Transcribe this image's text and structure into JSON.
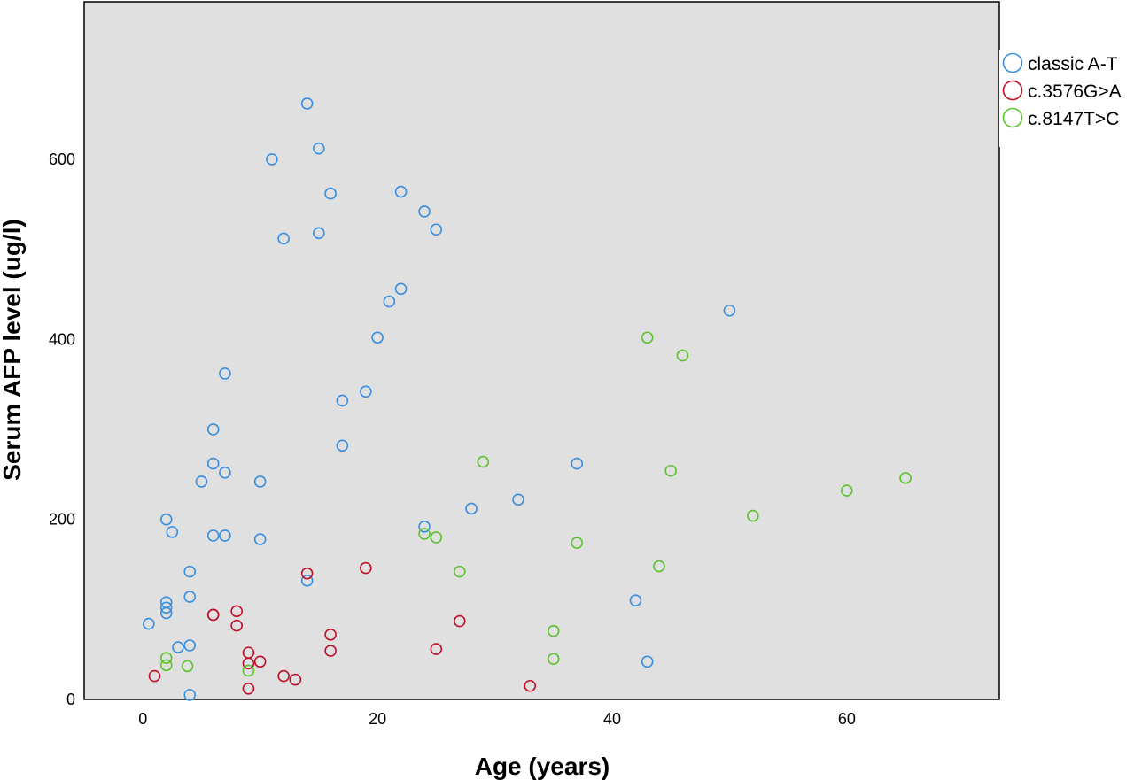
{
  "chart_data": {
    "type": "scatter",
    "title": "",
    "xlabel": "Age (years)",
    "ylabel": "Serum AFP level (ug/l)",
    "xlim": [
      -5,
      73
    ],
    "ylim": [
      0,
      775
    ],
    "x_ticks": [
      0,
      20,
      40,
      60
    ],
    "y_ticks": [
      0,
      200,
      400,
      600
    ],
    "grid": false,
    "plot_background": "#e0e0e0",
    "legend_position": "right-top",
    "series": [
      {
        "name": "classic A-T",
        "color": "#3a8ee0",
        "marker": "open-circle",
        "points": [
          [
            0.5,
            84
          ],
          [
            2,
            108
          ],
          [
            2,
            102
          ],
          [
            2,
            96
          ],
          [
            2,
            200
          ],
          [
            2.5,
            186
          ],
          [
            3,
            58
          ],
          [
            4,
            60
          ],
          [
            4,
            114
          ],
          [
            4,
            142
          ],
          [
            4,
            5
          ],
          [
            5,
            242
          ],
          [
            6,
            300
          ],
          [
            6,
            262
          ],
          [
            6,
            182
          ],
          [
            7,
            362
          ],
          [
            7,
            252
          ],
          [
            7,
            182
          ],
          [
            10,
            242
          ],
          [
            10,
            178
          ],
          [
            11,
            600
          ],
          [
            12,
            512
          ],
          [
            14,
            662
          ],
          [
            14,
            132
          ],
          [
            15,
            612
          ],
          [
            15,
            518
          ],
          [
            16,
            562
          ],
          [
            17,
            332
          ],
          [
            17,
            282
          ],
          [
            19,
            342
          ],
          [
            20,
            402
          ],
          [
            21,
            442
          ],
          [
            22,
            564
          ],
          [
            22,
            456
          ],
          [
            24,
            542
          ],
          [
            24,
            192
          ],
          [
            25,
            522
          ],
          [
            28,
            212
          ],
          [
            32,
            222
          ],
          [
            37,
            262
          ],
          [
            42,
            110
          ],
          [
            43,
            42
          ],
          [
            50,
            432
          ]
        ]
      },
      {
        "name": "c.3576G>A",
        "color": "#c0102a",
        "marker": "open-circle",
        "points": [
          [
            1,
            26
          ],
          [
            6,
            94
          ],
          [
            6,
            94
          ],
          [
            8,
            98
          ],
          [
            8,
            82
          ],
          [
            9,
            52
          ],
          [
            9,
            40
          ],
          [
            9,
            12
          ],
          [
            10,
            42
          ],
          [
            12,
            26
          ],
          [
            13,
            22
          ],
          [
            14,
            140
          ],
          [
            16,
            72
          ],
          [
            16,
            54
          ],
          [
            19,
            146
          ],
          [
            25,
            56
          ],
          [
            27,
            87
          ],
          [
            33,
            15
          ]
        ]
      },
      {
        "name": "c.8147T>C",
        "color": "#5ec22e",
        "marker": "open-circle",
        "points": [
          [
            2,
            46
          ],
          [
            2,
            38
          ],
          [
            3.8,
            37
          ],
          [
            9,
            32
          ],
          [
            24,
            184
          ],
          [
            25,
            180
          ],
          [
            27,
            142
          ],
          [
            29,
            264
          ],
          [
            35,
            76
          ],
          [
            35,
            45
          ],
          [
            37,
            174
          ],
          [
            43,
            402
          ],
          [
            44,
            148
          ],
          [
            45,
            254
          ],
          [
            46,
            382
          ],
          [
            52,
            204
          ],
          [
            60,
            232
          ],
          [
            65,
            246
          ]
        ]
      }
    ]
  }
}
